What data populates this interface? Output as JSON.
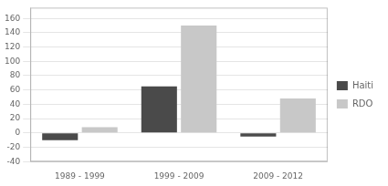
{
  "chart_data": {
    "type": "bar",
    "categories": [
      "1989 - 1999",
      "1999 - 2009",
      "2009 - 2012"
    ],
    "series": [
      {
        "name": "Haiti",
        "color": "#4a4a4a",
        "values": [
          -10,
          65,
          -5
        ]
      },
      {
        "name": "RDO",
        "color": "#c8c8c8",
        "values": [
          8,
          150,
          48
        ]
      }
    ],
    "ylim": [
      -40,
      175
    ],
    "yticks": [
      -40,
      -20,
      0,
      20,
      40,
      60,
      80,
      100,
      120,
      140,
      160
    ],
    "grid": true,
    "legend": "right"
  }
}
